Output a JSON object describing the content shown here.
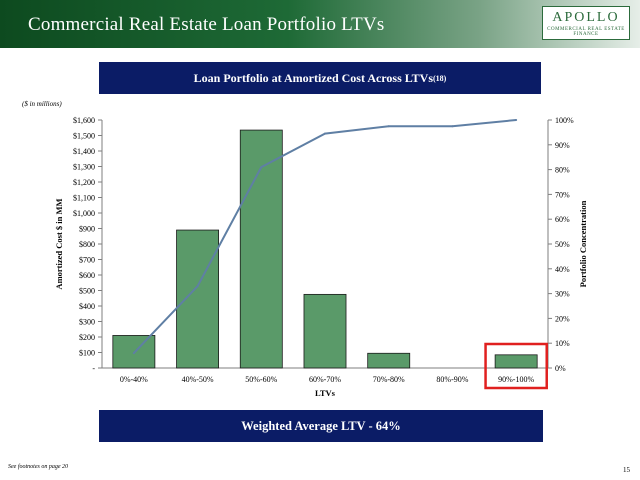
{
  "header": {
    "title": "Commercial Real Estate Loan Portfolio LTVs",
    "logo_main": "APOLLO",
    "logo_sub": "COMMERCIAL REAL ESTATE FINANCE"
  },
  "chart_title": {
    "text": "Loan Portfolio at Amortized Cost Across LTVs",
    "superscript": "(18)"
  },
  "units_note": "($ in millions)",
  "chart_data": {
    "type": "bar",
    "categories": [
      "0%-40%",
      "40%-50%",
      "50%-60%",
      "60%-70%",
      "70%-80%",
      "80%-90%",
      "90%-100%"
    ],
    "series": [
      {
        "type": "bar",
        "axis": "left",
        "values": [
          210,
          890,
          1535,
          475,
          95,
          0,
          85
        ]
      },
      {
        "type": "line",
        "axis": "right",
        "values": [
          0.06,
          0.33,
          0.81,
          0.945,
          0.975,
          0.975,
          1.0
        ]
      }
    ],
    "xlabel": "LTVs",
    "ylabel": "Amortized Cost $ in MM",
    "y2label": "Portfolio Concentration",
    "ylim": [
      0,
      1600
    ],
    "y2lim": [
      0,
      1
    ],
    "yticks": [
      0,
      100,
      200,
      300,
      400,
      500,
      600,
      700,
      800,
      900,
      1000,
      1100,
      1200,
      1300,
      1400,
      1500,
      1600
    ],
    "ytick_labels": [
      "-",
      "$100",
      "$200",
      "$300",
      "$400",
      "$500",
      "$600",
      "$700",
      "$800",
      "$900",
      "$1,000",
      "$1,100",
      "$1,200",
      "$1,300",
      "$1,400",
      "$1,500",
      "$1,600"
    ],
    "y2ticks": [
      0,
      0.1,
      0.2,
      0.3,
      0.4,
      0.5,
      0.6,
      0.7,
      0.8,
      0.9,
      1.0
    ],
    "y2tick_labels": [
      "0%",
      "10%",
      "20%",
      "30%",
      "40%",
      "50%",
      "60%",
      "70%",
      "80%",
      "90%",
      "100%"
    ],
    "highlight_category": "90%-100%",
    "grid": false,
    "colors": {
      "bar": "#5a9a69",
      "bar_edge": "#1a1a1a",
      "line": "#5f7fa4",
      "highlight": "#e0201f"
    }
  },
  "summary": "Weighted Average LTV -  64%",
  "footnote": "See footnotes on page 20",
  "page_number": "15"
}
